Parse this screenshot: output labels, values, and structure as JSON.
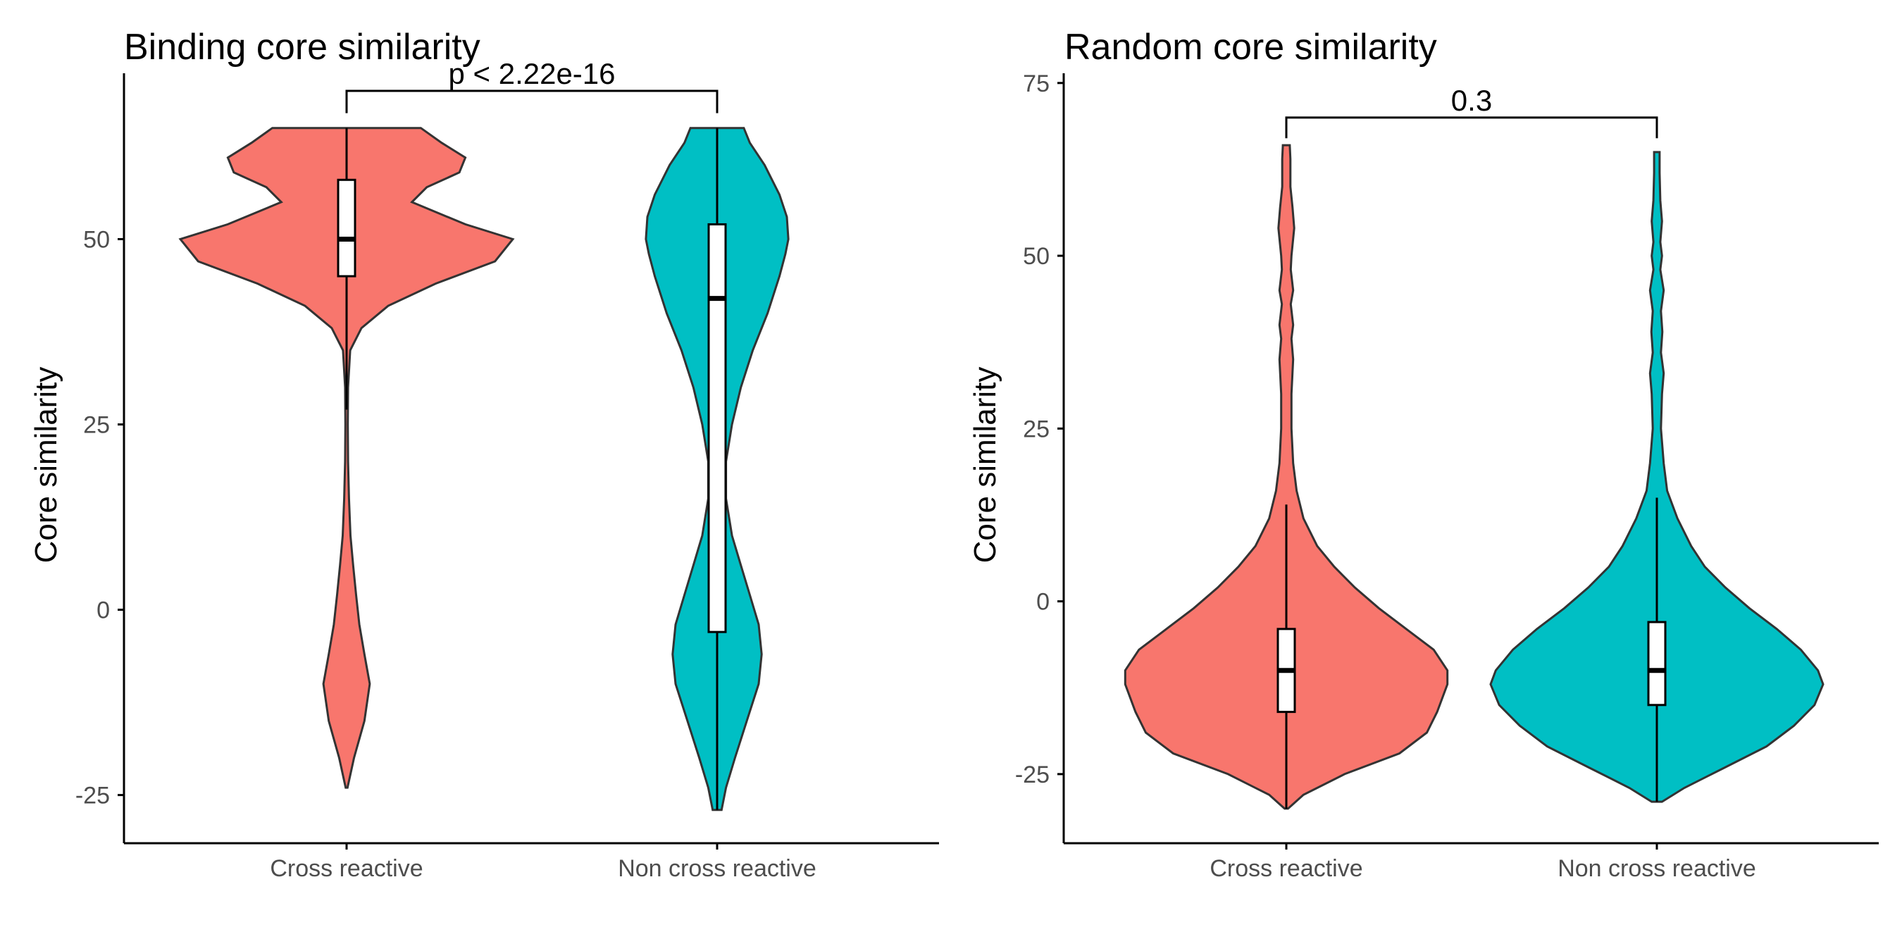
{
  "chart_data": [
    {
      "type": "violin",
      "title": "Binding core similarity",
      "ylabel": "Core similarity",
      "xlabel": "",
      "categories": [
        "Cross reactive",
        "Non cross reactive"
      ],
      "colors": [
        "#F8766D",
        "#00BFC4"
      ],
      "ylim": [
        -31.5,
        72
      ],
      "yticks": [
        -25,
        0,
        25,
        50
      ],
      "ytick_labels": [
        "-25",
        "0",
        "25",
        "50"
      ],
      "comparison": {
        "label": "p < 2.22e-16",
        "between": [
          "Cross reactive",
          "Non cross reactive"
        ],
        "y": 70
      },
      "series": [
        {
          "name": "Cross reactive",
          "min": -24,
          "max": 65,
          "box": {
            "q1": 45,
            "median": 50,
            "q3": 58,
            "whisker_low": 27,
            "whisker_high": 65
          },
          "profile": [
            [
              -24,
              0.3
            ],
            [
              -20,
              2.5
            ],
            [
              -15,
              6
            ],
            [
              -10,
              7.8
            ],
            [
              -6,
              6
            ],
            [
              -2,
              4.3
            ],
            [
              2,
              3.2
            ],
            [
              6,
              2.2
            ],
            [
              10,
              1.3
            ],
            [
              15,
              0.8
            ],
            [
              20,
              0.5
            ],
            [
              25,
              0.4
            ],
            [
              30,
              0.5
            ],
            [
              35,
              1.2
            ],
            [
              38,
              5
            ],
            [
              41,
              14
            ],
            [
              44,
              30
            ],
            [
              47,
              50
            ],
            [
              50,
              56
            ],
            [
              52,
              40
            ],
            [
              55,
              22
            ],
            [
              57,
              27
            ],
            [
              59,
              38
            ],
            [
              61,
              40
            ],
            [
              63,
              32
            ],
            [
              65,
              25
            ]
          ]
        },
        {
          "name": "Non cross reactive",
          "min": -27,
          "max": 65,
          "box": {
            "q1": -3,
            "median": 42,
            "q3": 52,
            "whisker_low": -27,
            "whisker_high": 65
          },
          "profile": [
            [
              -27,
              1.5
            ],
            [
              -24,
              3
            ],
            [
              -20,
              6
            ],
            [
              -15,
              10
            ],
            [
              -10,
              14
            ],
            [
              -6,
              15
            ],
            [
              -2,
              14
            ],
            [
              2,
              11
            ],
            [
              6,
              8
            ],
            [
              10,
              5
            ],
            [
              15,
              3
            ],
            [
              20,
              3
            ],
            [
              25,
              5
            ],
            [
              30,
              8
            ],
            [
              35,
              12
            ],
            [
              40,
              17
            ],
            [
              45,
              21
            ],
            [
              48,
              23
            ],
            [
              50,
              24
            ],
            [
              53,
              23.5
            ],
            [
              56,
              21
            ],
            [
              60,
              16
            ],
            [
              63,
              11
            ],
            [
              65,
              9
            ]
          ]
        }
      ]
    },
    {
      "type": "violin",
      "title": "Random core similarity",
      "ylabel": "Core similarity",
      "xlabel": "",
      "categories": [
        "Cross reactive",
        "Non cross reactive"
      ],
      "colors": [
        "#F8766D",
        "#00BFC4"
      ],
      "ylim": [
        -35,
        76
      ],
      "yticks": [
        -25,
        0,
        25,
        50,
        75
      ],
      "ytick_labels": [
        "-25",
        "0",
        "25",
        "50",
        "75"
      ],
      "comparison": {
        "label": "0.3",
        "between": [
          "Cross reactive",
          "Non cross reactive"
        ],
        "y": 70
      },
      "series": [
        {
          "name": "Cross reactive",
          "min": -30,
          "max": 66,
          "box": {
            "q1": -16,
            "median": -10,
            "q3": -4,
            "whisker_low": -30,
            "whisker_high": 14
          },
          "profile": [
            [
              -30,
              0.5
            ],
            [
              -28,
              5
            ],
            [
              -25,
              17
            ],
            [
              -22,
              33
            ],
            [
              -19,
              41
            ],
            [
              -16,
              44
            ],
            [
              -12,
              47
            ],
            [
              -10,
              47
            ],
            [
              -7,
              43
            ],
            [
              -4,
              35
            ],
            [
              -1,
              27
            ],
            [
              2,
              20
            ],
            [
              5,
              14
            ],
            [
              8,
              9
            ],
            [
              12,
              5
            ],
            [
              16,
              3
            ],
            [
              20,
              2
            ],
            [
              25,
              1.5
            ],
            [
              30,
              1.5
            ],
            [
              35,
              2
            ],
            [
              38,
              1.5
            ],
            [
              40,
              2
            ],
            [
              43,
              1.3
            ],
            [
              45,
              2
            ],
            [
              48,
              1.3
            ],
            [
              50,
              1.5
            ],
            [
              54,
              2.3
            ],
            [
              57,
              1.8
            ],
            [
              60,
              1.2
            ],
            [
              64,
              1.2
            ],
            [
              66,
              1
            ]
          ]
        },
        {
          "name": "Non cross reactive",
          "min": -29,
          "max": 65,
          "box": {
            "q1": -15,
            "median": -10,
            "q3": -3,
            "whisker_low": -29,
            "whisker_high": 15
          },
          "profile": [
            [
              -29,
              1.5
            ],
            [
              -27,
              8
            ],
            [
              -24,
              20
            ],
            [
              -21,
              32
            ],
            [
              -18,
              40
            ],
            [
              -15,
              46
            ],
            [
              -12,
              48.5
            ],
            [
              -10,
              47
            ],
            [
              -7,
              42
            ],
            [
              -4,
              35
            ],
            [
              -1,
              27
            ],
            [
              2,
              20
            ],
            [
              5,
              14
            ],
            [
              8,
              10
            ],
            [
              12,
              6
            ],
            [
              16,
              3
            ],
            [
              20,
              2
            ],
            [
              25,
              1.2
            ],
            [
              30,
              1.5
            ],
            [
              33,
              2
            ],
            [
              36,
              1.2
            ],
            [
              39,
              1.6
            ],
            [
              42,
              1.2
            ],
            [
              45,
              2
            ],
            [
              48,
              1
            ],
            [
              50,
              1.5
            ],
            [
              52,
              1
            ],
            [
              55,
              1.5
            ],
            [
              58,
              1
            ],
            [
              62,
              0.8
            ],
            [
              65,
              0.8
            ]
          ]
        }
      ]
    }
  ]
}
